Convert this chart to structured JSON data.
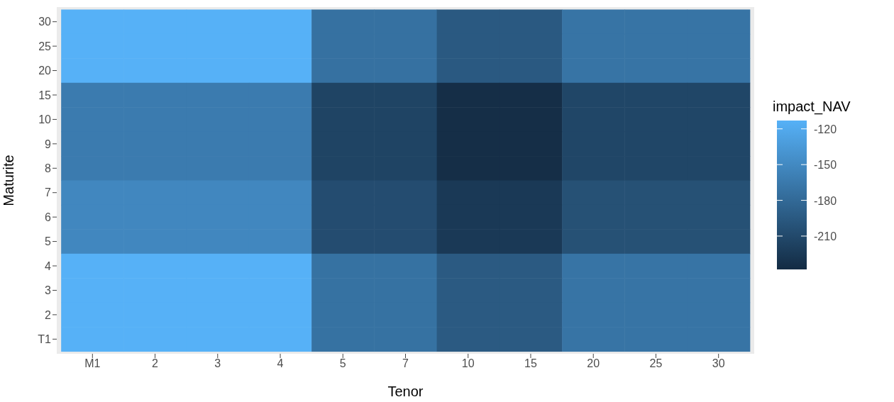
{
  "chart_data": {
    "type": "heatmap",
    "xlabel": "Tenor",
    "ylabel": "Maturite",
    "legend_title": "impact_NAV",
    "categories": [
      "M1",
      "2",
      "3",
      "4",
      "5",
      "7",
      "10",
      "15",
      "20",
      "25",
      "30"
    ],
    "y_categories": [
      "30",
      "25",
      "20",
      "15",
      "10",
      "9",
      "8",
      "7",
      "6",
      "5",
      "4",
      "3",
      "2",
      "T1"
    ],
    "cells": [
      [
        -113,
        -113,
        -113,
        -113,
        -173,
        -173,
        -195,
        -195,
        -170,
        -170,
        -170
      ],
      [
        -113,
        -113,
        -113,
        -113,
        -173,
        -173,
        -195,
        -195,
        -170,
        -170,
        -170
      ],
      [
        -113,
        -113,
        -113,
        -113,
        -173,
        -173,
        -195,
        -195,
        -170,
        -170,
        -170
      ],
      [
        -163,
        -163,
        -163,
        -163,
        -215,
        -215,
        -235,
        -235,
        -213,
        -213,
        -213
      ],
      [
        -163,
        -163,
        -163,
        -163,
        -215,
        -215,
        -235,
        -235,
        -213,
        -213,
        -213
      ],
      [
        -163,
        -163,
        -163,
        -163,
        -215,
        -215,
        -235,
        -235,
        -213,
        -213,
        -213
      ],
      [
        -163,
        -163,
        -163,
        -163,
        -215,
        -215,
        -235,
        -235,
        -213,
        -213,
        -213
      ],
      [
        -152,
        -152,
        -152,
        -152,
        -207,
        -207,
        -225,
        -225,
        -203,
        -203,
        -203
      ],
      [
        -152,
        -152,
        -152,
        -152,
        -207,
        -207,
        -225,
        -225,
        -203,
        -203,
        -203
      ],
      [
        -152,
        -152,
        -152,
        -152,
        -207,
        -207,
        -225,
        -225,
        -203,
        -203,
        -203
      ],
      [
        -113,
        -113,
        -113,
        -113,
        -172,
        -172,
        -194,
        -194,
        -170,
        -170,
        -170
      ],
      [
        -113,
        -113,
        -113,
        -113,
        -172,
        -172,
        -194,
        -194,
        -170,
        -170,
        -170
      ],
      [
        -113,
        -113,
        -113,
        -113,
        -172,
        -172,
        -194,
        -194,
        -170,
        -170,
        -170
      ],
      [
        -113,
        -113,
        -113,
        -113,
        -172,
        -172,
        -194,
        -194,
        -170,
        -170,
        -170
      ]
    ],
    "clim": [
      -238,
      -113
    ],
    "cticks": [
      -210,
      -180,
      -150,
      -120
    ]
  }
}
